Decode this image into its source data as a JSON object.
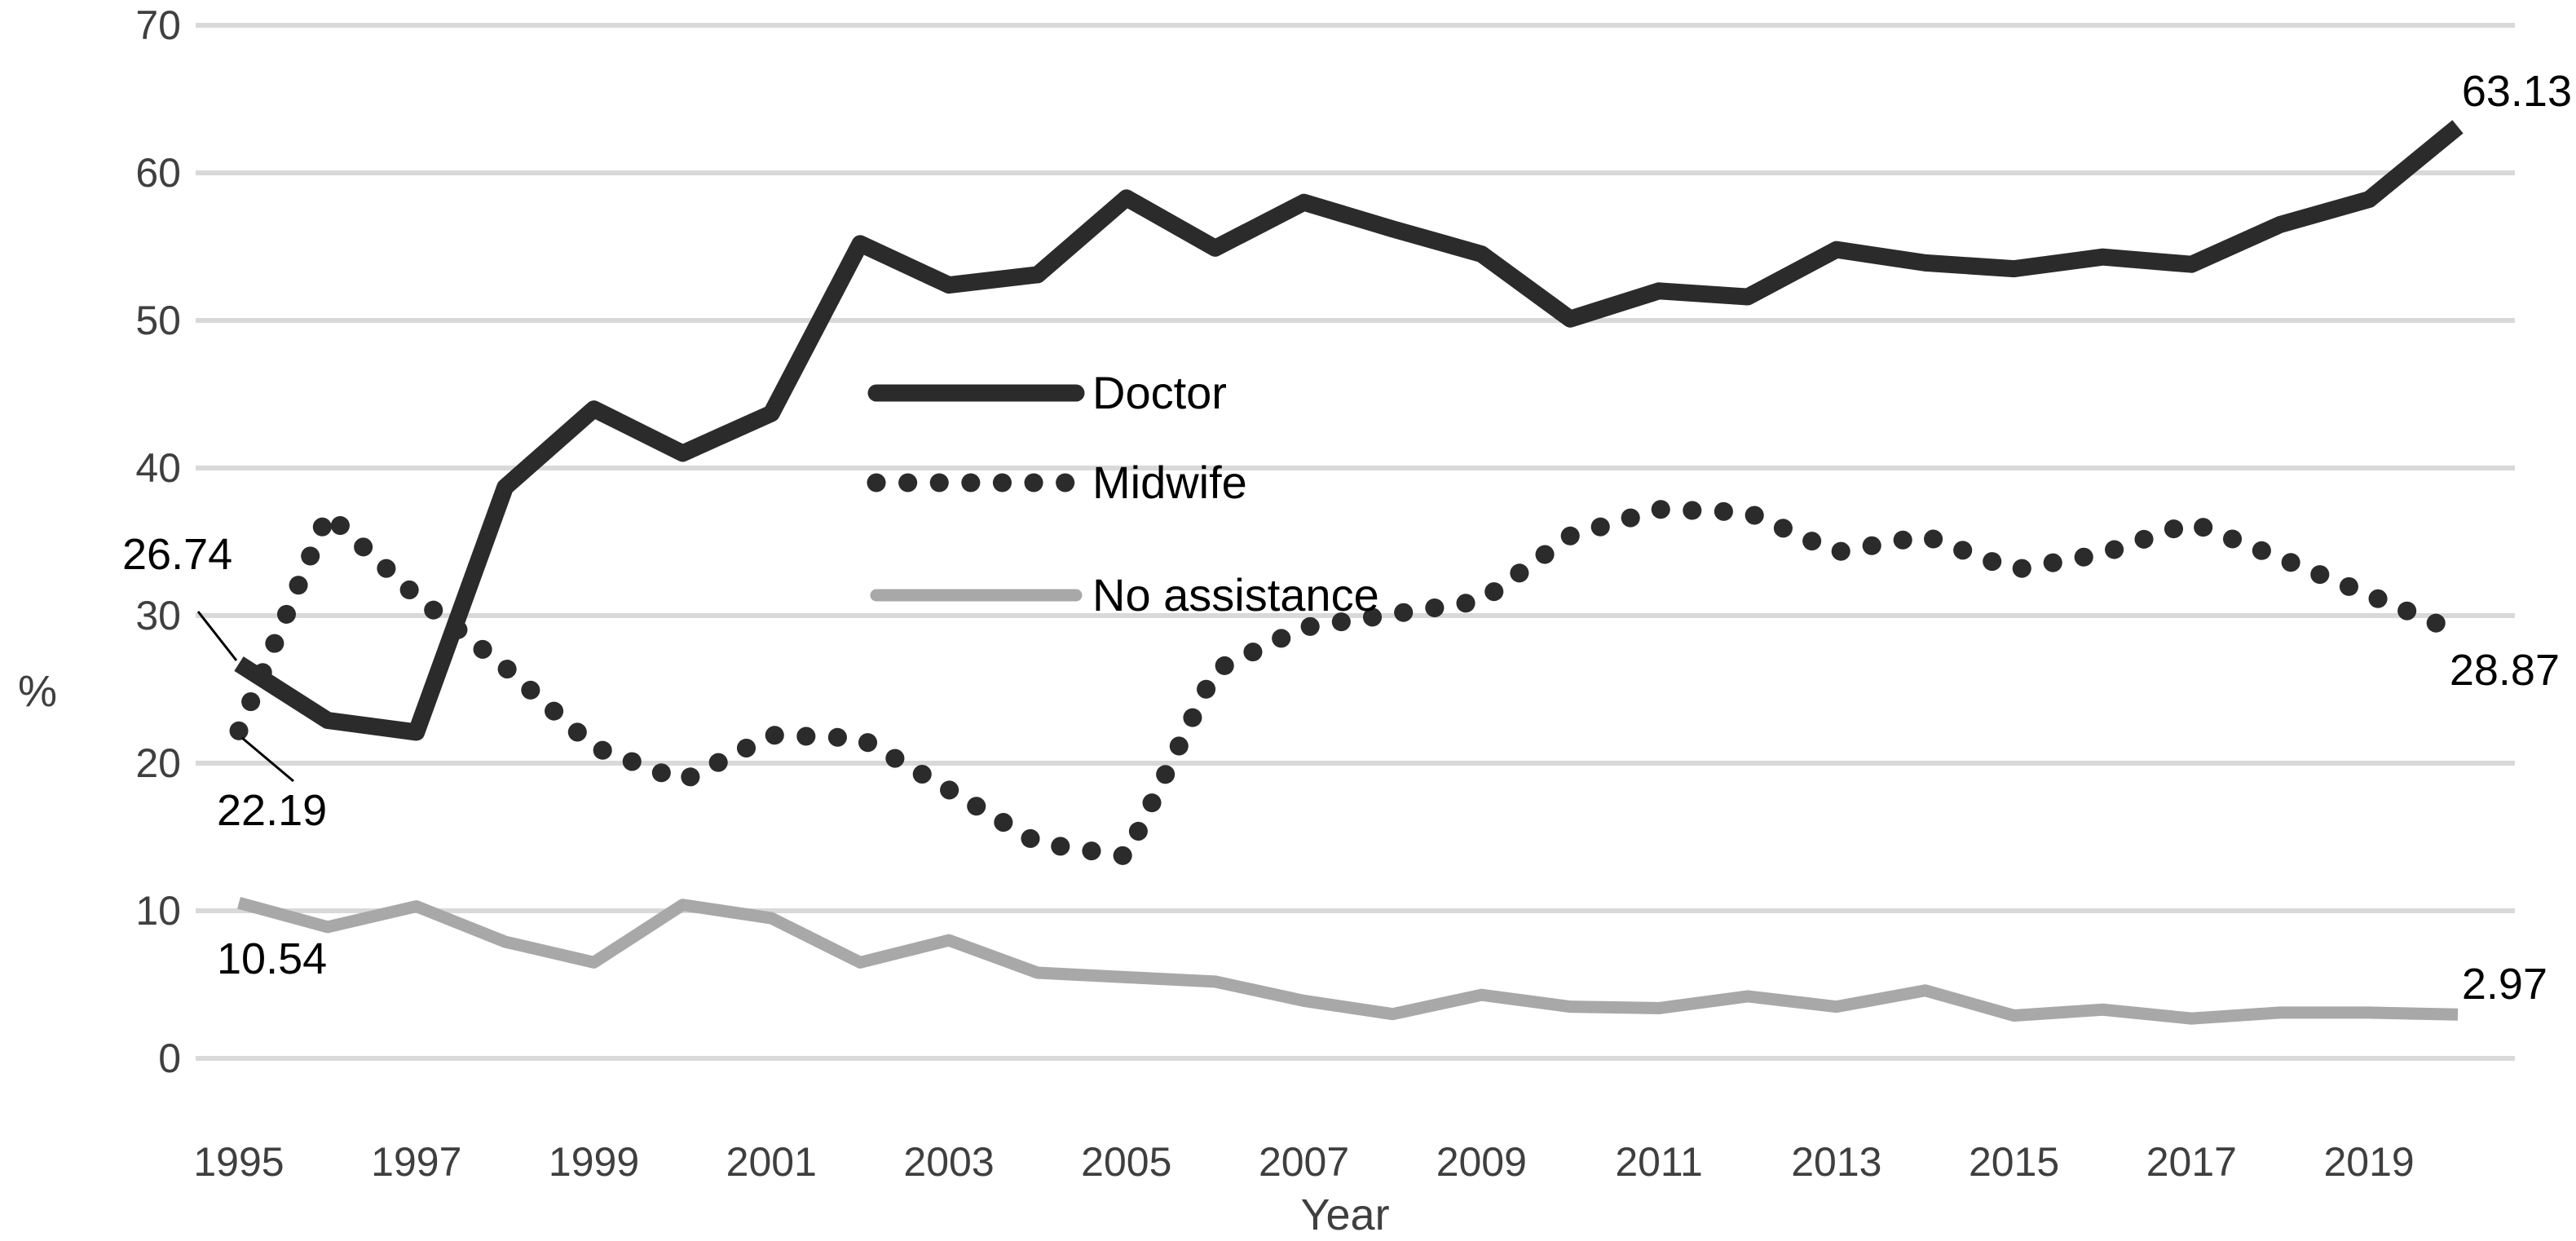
{
  "chart_data": {
    "type": "line",
    "title": "",
    "xlabel": "Year",
    "ylabel": "%",
    "x": [
      1995,
      1996,
      1997,
      1998,
      1999,
      2000,
      2001,
      2002,
      2003,
      2004,
      2005,
      2006,
      2007,
      2008,
      2009,
      2010,
      2011,
      2012,
      2013,
      2014,
      2015,
      2016,
      2017,
      2018,
      2019,
      2020
    ],
    "x_tick_years": [
      1995,
      1997,
      1999,
      2001,
      2003,
      2005,
      2007,
      2009,
      2011,
      2013,
      2015,
      2017,
      2019
    ],
    "x_tick_labels": [
      "1995",
      "1997",
      "1999",
      "2001",
      "2003",
      "2005",
      "2007",
      "2009",
      "2011",
      "2013",
      "2015",
      "2017",
      "2019"
    ],
    "y_ticks": [
      0,
      10,
      20,
      30,
      40,
      50,
      60,
      70
    ],
    "ylim": [
      0,
      70
    ],
    "grid": "horizontal",
    "legend_position": "inside-upper-middle",
    "series": [
      {
        "name": "Doctor",
        "style": "solid-thick",
        "color": "#2b2b2b",
        "values": [
          26.74,
          22.9,
          22.1,
          38.7,
          44.0,
          41.0,
          43.7,
          55.2,
          52.4,
          53.1,
          58.3,
          54.9,
          58.0,
          56.2,
          54.5,
          50.1,
          52.0,
          51.6,
          54.8,
          53.9,
          53.5,
          54.3,
          53.8,
          56.5,
          58.2,
          63.13
        ]
      },
      {
        "name": "Midwife",
        "style": "dotted",
        "color": "#2b2b2b",
        "values": [
          22.19,
          36.9,
          31.3,
          26.5,
          21.1,
          18.8,
          21.9,
          21.7,
          18.2,
          14.6,
          13.7,
          26.3,
          29.2,
          30.1,
          31.0,
          35.4,
          37.2,
          37.0,
          34.3,
          35.4,
          33.1,
          34.2,
          36.3,
          33.9,
          31.4,
          28.87
        ]
      },
      {
        "name": "No assistance",
        "style": "solid-thin",
        "color": "#a8a8a8",
        "values": [
          10.54,
          8.9,
          10.3,
          7.9,
          6.5,
          10.4,
          9.5,
          6.5,
          8.0,
          5.8,
          5.5,
          5.2,
          3.9,
          3.0,
          4.3,
          3.5,
          3.4,
          4.2,
          3.5,
          4.6,
          2.9,
          3.3,
          2.7,
          3.1,
          3.1,
          2.97
        ]
      }
    ],
    "annotations": [
      {
        "text": "26.74",
        "series": "Doctor",
        "year": 1995
      },
      {
        "text": "22.19",
        "series": "Midwife",
        "year": 1995
      },
      {
        "text": "10.54",
        "series": "No assistance",
        "year": 1995
      },
      {
        "text": "63.13",
        "series": "Doctor",
        "year": 2020
      },
      {
        "text": "28.87",
        "series": "Midwife",
        "year": 2020
      },
      {
        "text": "2.97",
        "series": "No assistance",
        "year": 2020
      }
    ]
  },
  "colors": {
    "gridline": "#d9d9d9",
    "tick_text": "#3f3f3f",
    "annotation_text": "#000000",
    "legend_text": "#000000",
    "doctor_line": "#2b2b2b",
    "midwife_dots": "#2b2b2b",
    "no_assistance_line": "#a8a8a8"
  }
}
